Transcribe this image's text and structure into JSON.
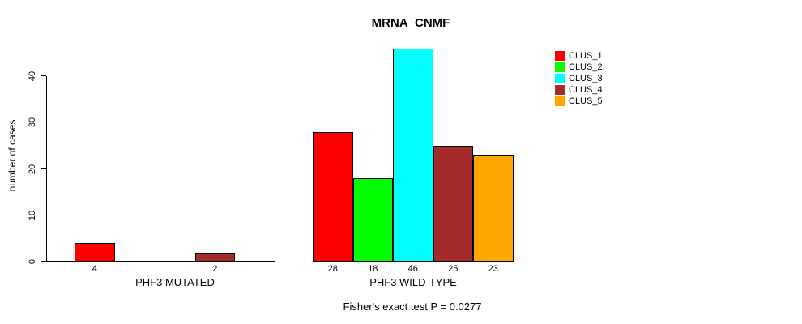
{
  "title": "MRNA_CNMF",
  "y_axis": {
    "label": "number of cases",
    "ticks": [
      0,
      10,
      20,
      30,
      40
    ]
  },
  "footnote": "Fisher's exact test P = 0.0277",
  "legend": {
    "items": [
      {
        "label": "CLUS_1",
        "color": "#FF0000"
      },
      {
        "label": "CLUS_2",
        "color": "#00FF00"
      },
      {
        "label": "CLUS_3",
        "color": "#00FFFF"
      },
      {
        "label": "CLUS_4",
        "color": "#A52A2A"
      },
      {
        "label": "CLUS_5",
        "color": "#FFA500"
      }
    ]
  },
  "chart_data": {
    "type": "bar",
    "title": "MRNA_CNMF",
    "xlabel": "",
    "ylabel": "number of cases",
    "categories": [
      "PHF3 MUTATED",
      "PHF3 WILD-TYPE"
    ],
    "series": [
      {
        "name": "CLUS_1",
        "color": "#FF0000",
        "values": [
          4,
          28
        ]
      },
      {
        "name": "CLUS_2",
        "color": "#00FF00",
        "values": [
          0,
          18
        ]
      },
      {
        "name": "CLUS_3",
        "color": "#00FFFF",
        "values": [
          0,
          46
        ]
      },
      {
        "name": "CLUS_4",
        "color": "#A52A2A",
        "values": [
          2,
          25
        ]
      },
      {
        "name": "CLUS_5",
        "color": "#FFA500",
        "values": [
          0,
          23
        ]
      }
    ],
    "y_ticks": [
      0,
      10,
      20,
      30,
      40
    ],
    "ylim": [
      0,
      46
    ],
    "grid": false,
    "legend_position": "right",
    "bar_value_labels": "value shown below each bar when greater than 0",
    "footnote": "Fisher's exact test P = 0.0277"
  }
}
